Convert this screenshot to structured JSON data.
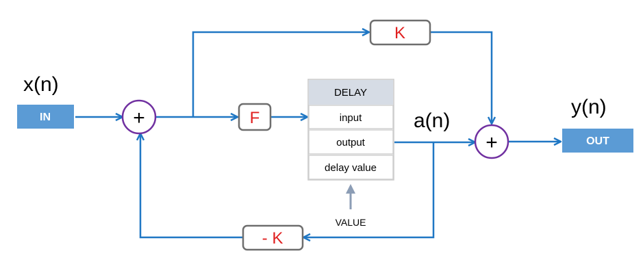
{
  "input_signal": "x(n)",
  "output_signal": "y(n)",
  "intermediate_signal": "a(n)",
  "input_block": "IN",
  "output_block": "OUT",
  "gain_forward": "K",
  "gain_feedback": "- K",
  "gain_f": "F",
  "sum_symbol": "+",
  "delay": {
    "title": "DELAY",
    "ports": [
      "input",
      "output",
      "delay value"
    ]
  },
  "value_label": "VALUE",
  "colors": {
    "wire": "#1f77c4",
    "io_block": "#5b9bd5",
    "gain_text": "#e02020",
    "sum_circle": "#7030a0",
    "delay_header": "#d6dce5",
    "value_arrow": "#8c9db5"
  }
}
